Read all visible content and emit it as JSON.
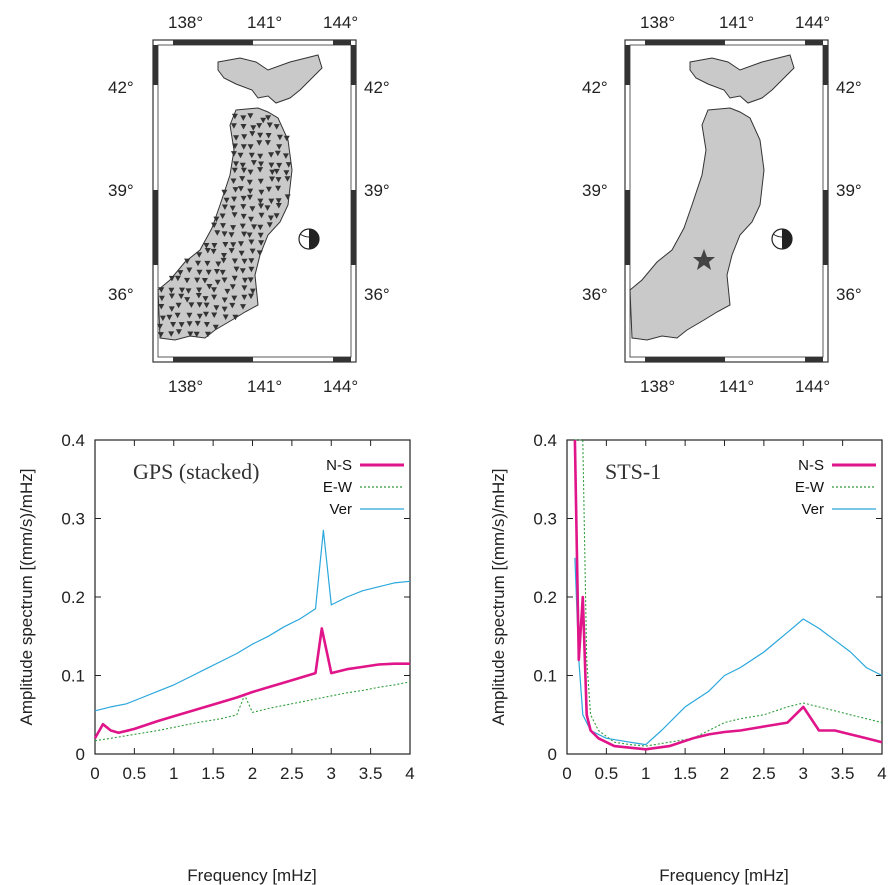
{
  "maps": [
    {
      "lon_ticks": [
        "138°",
        "141°",
        "144°"
      ],
      "lat_ticks": [
        "42°",
        "39°",
        "36°"
      ],
      "markers": "gps-stations"
    },
    {
      "lon_ticks": [
        "138°",
        "141°",
        "144°"
      ],
      "lat_ticks": [
        "42°",
        "39°",
        "36°"
      ],
      "markers": "sts1-station-star"
    }
  ],
  "chart_data": [
    {
      "type": "line",
      "inset_label": "GPS (stacked)",
      "xlabel": "Frequency [mHz]",
      "ylabel": "Amplitude spectrum [(mm/s)/mHz]",
      "xlim": [
        0,
        4
      ],
      "ylim": [
        0,
        0.4
      ],
      "xticks": [
        "0",
        "0.5",
        "1",
        "1.5",
        "2",
        "2.5",
        "3",
        "3.5",
        "4"
      ],
      "yticks": [
        "0",
        "0.1",
        "0.2",
        "0.3",
        "0.4"
      ],
      "legend_position": "top-right",
      "series": [
        {
          "name": "N-S",
          "color": "#e0158a",
          "stroke": "solid-thick",
          "x": [
            0,
            0.1,
            0.2,
            0.3,
            0.5,
            0.8,
            1.0,
            1.3,
            1.6,
            1.8,
            2.0,
            2.2,
            2.4,
            2.6,
            2.8,
            2.88,
            3.0,
            3.2,
            3.4,
            3.6,
            3.8,
            4.0
          ],
          "y": [
            0.02,
            0.038,
            0.03,
            0.027,
            0.032,
            0.042,
            0.048,
            0.057,
            0.066,
            0.072,
            0.079,
            0.085,
            0.091,
            0.097,
            0.103,
            0.16,
            0.103,
            0.108,
            0.111,
            0.114,
            0.115,
            0.115
          ]
        },
        {
          "name": "E-W",
          "color": "#2e9e3a",
          "stroke": "dotted",
          "x": [
            0,
            0.2,
            0.5,
            0.8,
            1.0,
            1.3,
            1.6,
            1.8,
            1.9,
            2.0,
            2.2,
            2.4,
            2.6,
            2.8,
            3.0,
            3.2,
            3.4,
            3.6,
            3.8,
            4.0
          ],
          "y": [
            0.017,
            0.02,
            0.025,
            0.03,
            0.034,
            0.04,
            0.045,
            0.05,
            0.075,
            0.053,
            0.058,
            0.062,
            0.066,
            0.07,
            0.074,
            0.078,
            0.081,
            0.085,
            0.088,
            0.092
          ]
        },
        {
          "name": "Ver",
          "color": "#2aa7dc",
          "stroke": "solid-thin",
          "x": [
            0,
            0.2,
            0.4,
            0.6,
            0.8,
            1.0,
            1.2,
            1.4,
            1.6,
            1.8,
            2.0,
            2.2,
            2.4,
            2.6,
            2.8,
            2.9,
            3.0,
            3.2,
            3.4,
            3.6,
            3.8,
            4.0
          ],
          "y": [
            0.055,
            0.06,
            0.064,
            0.072,
            0.08,
            0.088,
            0.098,
            0.108,
            0.118,
            0.128,
            0.14,
            0.15,
            0.162,
            0.172,
            0.185,
            0.285,
            0.19,
            0.2,
            0.208,
            0.213,
            0.218,
            0.22
          ]
        }
      ]
    },
    {
      "type": "line",
      "inset_label": "STS-1",
      "xlabel": "Frequency [mHz]",
      "ylabel": "Amplitude spectrum [(mm/s)/mHz]",
      "xlim": [
        0,
        4
      ],
      "ylim": [
        0,
        0.4
      ],
      "xticks": [
        "0",
        "0.5",
        "1",
        "1.5",
        "2",
        "2.5",
        "3",
        "3.5",
        "4"
      ],
      "yticks": [
        "0",
        "0.1",
        "0.2",
        "0.3",
        "0.4"
      ],
      "legend_position": "top-right",
      "series": [
        {
          "name": "N-S",
          "color": "#e0158a",
          "stroke": "solid-thick",
          "x": [
            0.1,
            0.15,
            0.2,
            0.25,
            0.3,
            0.4,
            0.6,
            0.8,
            1.0,
            1.3,
            1.6,
            1.8,
            2.0,
            2.2,
            2.5,
            2.8,
            3.0,
            3.2,
            3.4,
            3.6,
            3.8,
            4.0
          ],
          "y": [
            0.4,
            0.12,
            0.2,
            0.05,
            0.03,
            0.02,
            0.01,
            0.008,
            0.006,
            0.01,
            0.02,
            0.025,
            0.028,
            0.03,
            0.035,
            0.04,
            0.06,
            0.03,
            0.03,
            0.025,
            0.02,
            0.015
          ]
        },
        {
          "name": "E-W",
          "color": "#2e9e3a",
          "stroke": "dotted",
          "x": [
            0.1,
            0.15,
            0.2,
            0.25,
            0.3,
            0.4,
            0.6,
            0.8,
            1.0,
            1.3,
            1.6,
            1.8,
            2.0,
            2.2,
            2.5,
            2.8,
            3.0,
            3.2,
            3.4,
            3.6,
            3.8,
            4.0
          ],
          "y": [
            0.4,
            0.4,
            0.4,
            0.12,
            0.05,
            0.03,
            0.015,
            0.012,
            0.01,
            0.015,
            0.02,
            0.03,
            0.04,
            0.045,
            0.05,
            0.06,
            0.065,
            0.06,
            0.055,
            0.05,
            0.045,
            0.04
          ]
        },
        {
          "name": "Ver",
          "color": "#2aa7dc",
          "stroke": "solid-thin",
          "x": [
            0.1,
            0.15,
            0.2,
            0.3,
            0.5,
            0.8,
            1.0,
            1.2,
            1.5,
            1.8,
            2.0,
            2.2,
            2.5,
            2.8,
            3.0,
            3.2,
            3.4,
            3.6,
            3.8,
            4.0
          ],
          "y": [
            0.25,
            0.12,
            0.05,
            0.03,
            0.02,
            0.015,
            0.012,
            0.03,
            0.06,
            0.08,
            0.1,
            0.11,
            0.13,
            0.155,
            0.172,
            0.16,
            0.145,
            0.13,
            0.11,
            0.1
          ]
        }
      ]
    }
  ]
}
